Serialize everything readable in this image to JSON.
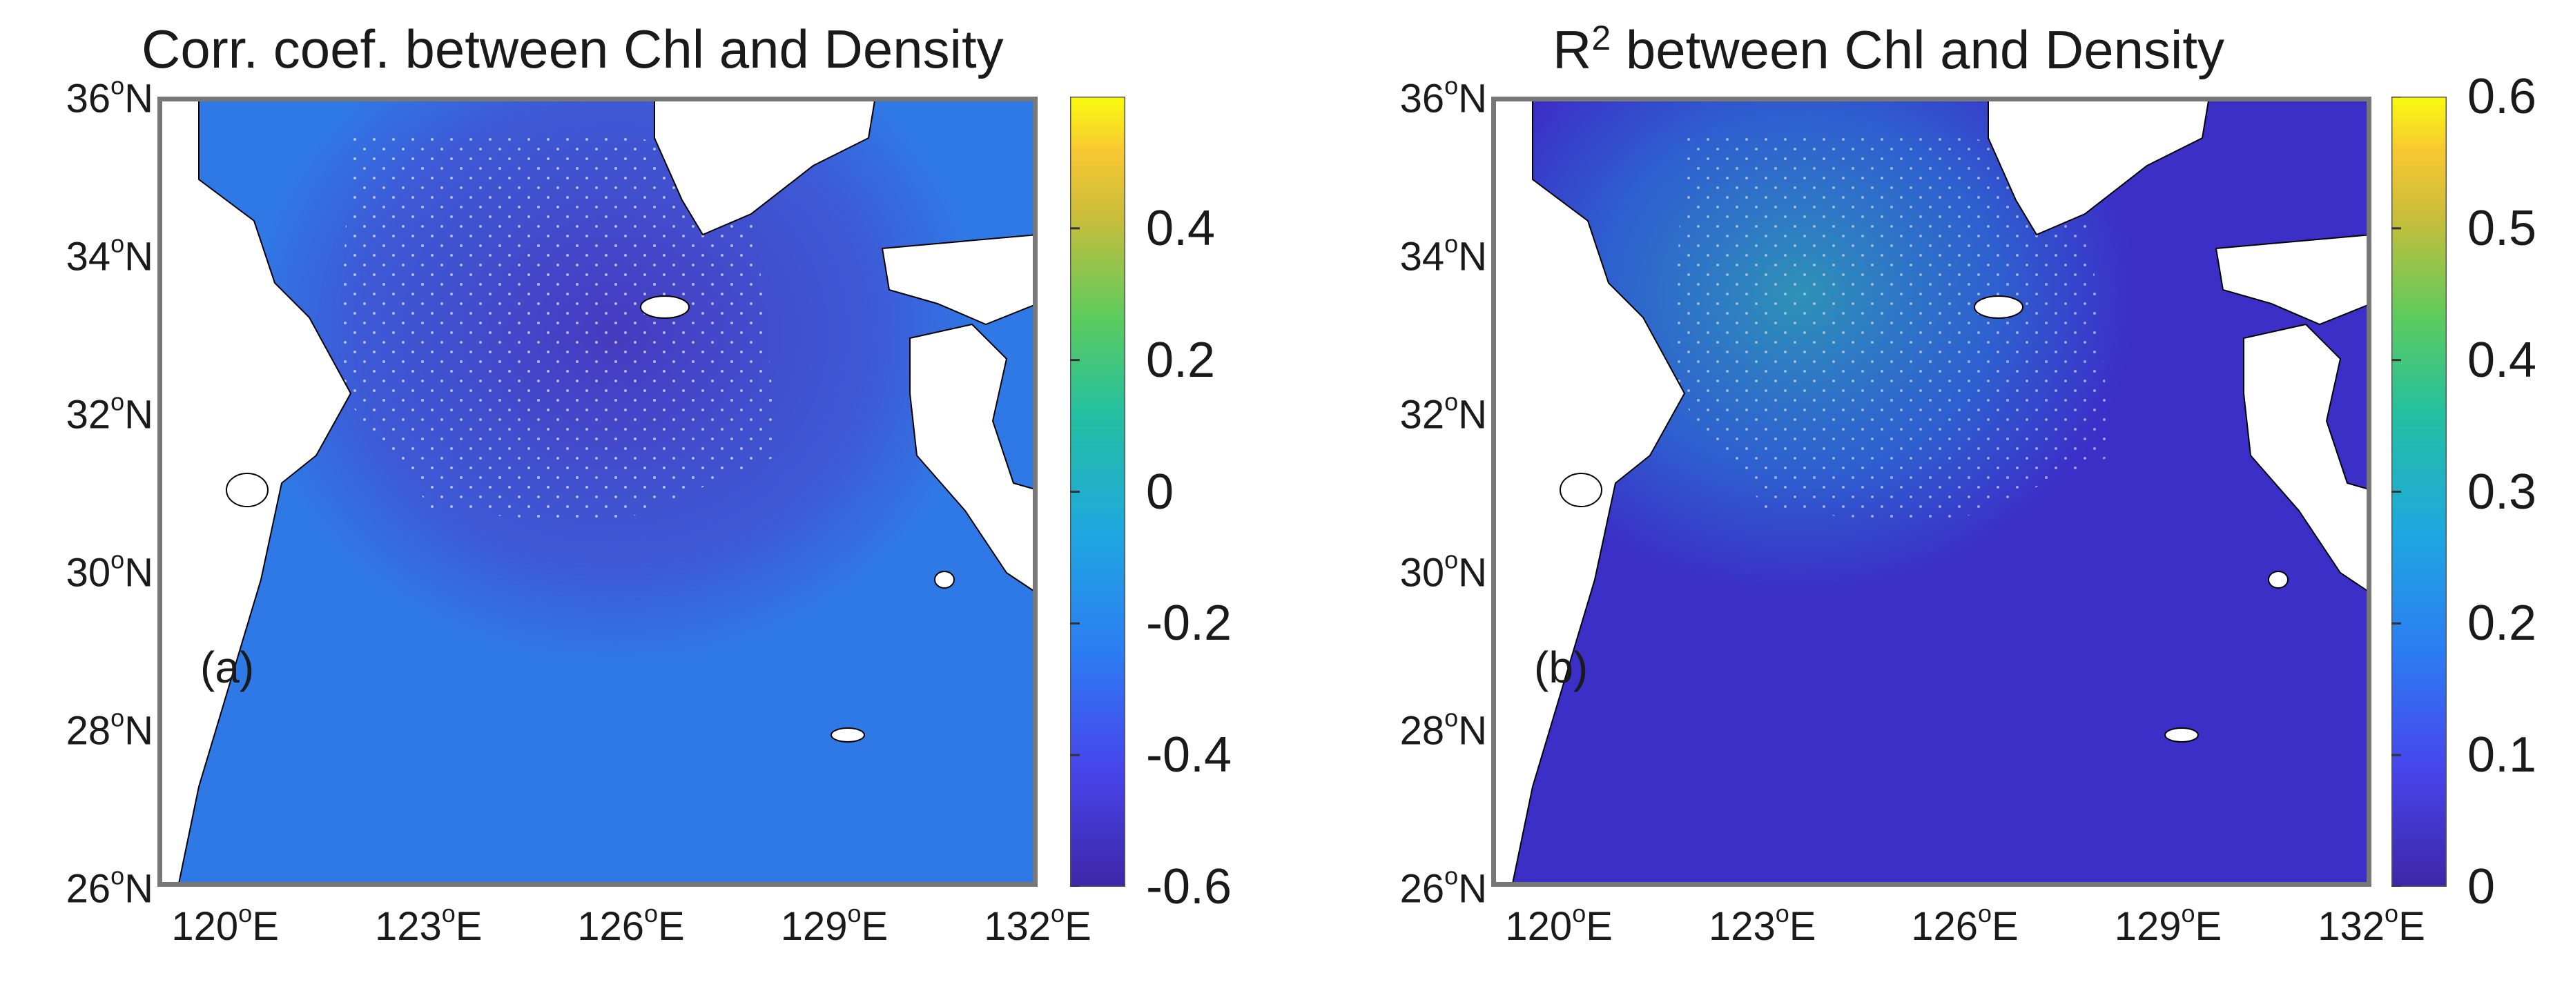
{
  "panels": [
    {
      "id": "a",
      "title": "Corr. coef. between Chl and Density",
      "tag": "(a)",
      "colorbar": {
        "min": -0.6,
        "max": 0.6,
        "ticks": [
          "0.4",
          "0.2",
          "0",
          "-0.2",
          "-0.4",
          "-0.6"
        ],
        "tick_values": [
          0.4,
          0.2,
          0.0,
          -0.2,
          -0.4,
          -0.6
        ]
      }
    },
    {
      "id": "b",
      "title_pre": "R",
      "title_sup": "2",
      "title_post": " between Chl and Density",
      "tag": "(b)",
      "colorbar": {
        "min": 0.0,
        "max": 0.6,
        "ticks": [
          "0.6",
          "0.5",
          "0.4",
          "0.3",
          "0.2",
          "0.1",
          "0"
        ],
        "tick_values": [
          0.6,
          0.5,
          0.4,
          0.3,
          0.2,
          0.1,
          0.0
        ]
      }
    }
  ],
  "axes": {
    "lat": {
      "min": 26,
      "max": 36,
      "ticks": [
        {
          "v": 36,
          "num": "36",
          "deg": "o",
          "hemi": "N"
        },
        {
          "v": 34,
          "num": "34",
          "deg": "o",
          "hemi": "N"
        },
        {
          "v": 32,
          "num": "32",
          "deg": "o",
          "hemi": "N"
        },
        {
          "v": 30,
          "num": "30",
          "deg": "o",
          "hemi": "N"
        },
        {
          "v": 28,
          "num": "28",
          "deg": "o",
          "hemi": "N"
        },
        {
          "v": 26,
          "num": "26",
          "deg": "o",
          "hemi": "N"
        }
      ]
    },
    "lon": {
      "min": 119,
      "max": 132,
      "ticks": [
        {
          "v": 120,
          "num": "120",
          "deg": "o",
          "hemi": "E"
        },
        {
          "v": 123,
          "num": "123",
          "deg": "o",
          "hemi": "E"
        },
        {
          "v": 126,
          "num": "126",
          "deg": "o",
          "hemi": "E"
        },
        {
          "v": 129,
          "num": "129",
          "deg": "o",
          "hemi": "E"
        },
        {
          "v": 132,
          "num": "132",
          "deg": "o",
          "hemi": "E"
        }
      ]
    }
  },
  "colors": {
    "parula_low": "#3e26a8",
    "parula_mid": "#2ab4a6",
    "parula_high": "#f9fb0e",
    "land": "#ffffff",
    "coast": "#000000",
    "stipple": "#e6e6e6"
  }
}
